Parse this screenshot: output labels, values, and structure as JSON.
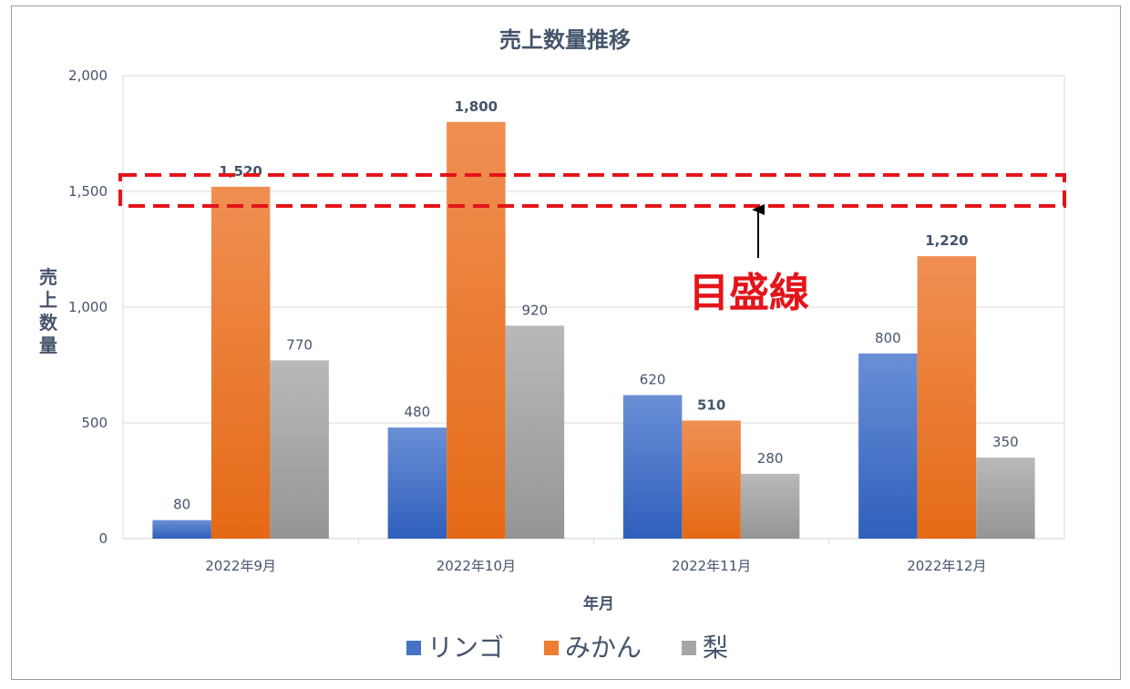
{
  "chart_data": {
    "type": "bar",
    "title": "売上数量推移",
    "xlabel": "年月",
    "ylabel": "売上数量",
    "categories": [
      "2022年9月",
      "2022年10月",
      "2022年11月",
      "2022年12月"
    ],
    "series": [
      {
        "name": "リンゴ",
        "values": [
          80,
          480,
          620,
          800
        ],
        "color": "#4472c4"
      },
      {
        "name": "みかん",
        "values": [
          1520,
          1800,
          510,
          1220
        ],
        "color": "#ed7d31"
      },
      {
        "name": "梨",
        "values": [
          770,
          920,
          280,
          350
        ],
        "color": "#a5a5a5"
      }
    ],
    "data_labels": [
      [
        "80",
        "480",
        "620",
        "800"
      ],
      [
        "1,520",
        "1,800",
        "510",
        "1,220"
      ],
      [
        "770",
        "920",
        "280",
        "350"
      ]
    ],
    "bold_label_series": [
      1
    ],
    "ylim": [
      0,
      2000
    ],
    "yticks": [
      0,
      500,
      1000,
      1500,
      2000
    ],
    "ytick_labels": [
      "0",
      "500",
      "1,000",
      "1,500",
      "2,000"
    ],
    "grid": true,
    "legend_position": "bottom",
    "annotation": {
      "text": "目盛線",
      "target_value": 1500,
      "color": "#e4141a"
    }
  }
}
